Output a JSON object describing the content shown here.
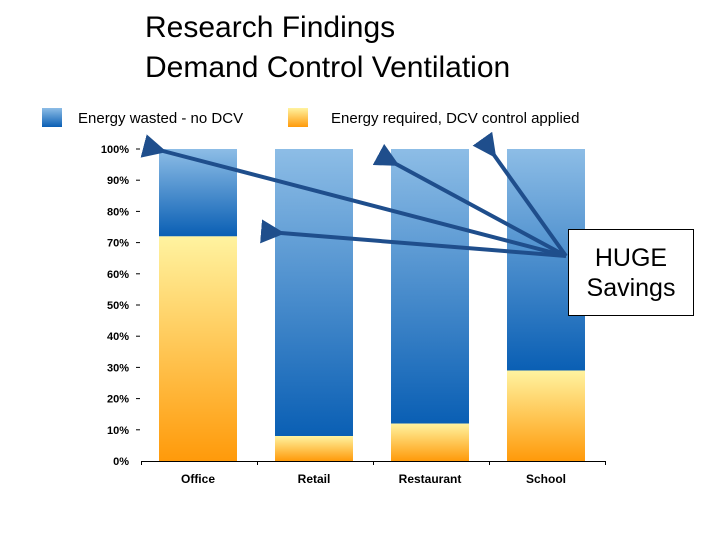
{
  "title": {
    "line1": "Research Findings",
    "line2": "Demand Control Ventilation"
  },
  "colors": {
    "wasted_top": "#8dbde6",
    "wasted_bottom": "#0a5fb4",
    "required_top": "#fff3a0",
    "required_bottom": "#ff9a0a",
    "arrow": "#1f4e8c"
  },
  "callout": {
    "line1": "HUGE",
    "line2": "Savings"
  },
  "chart_data": {
    "type": "bar",
    "stacked": true,
    "categories": [
      "Office",
      "Retail",
      "Restaurant",
      "School"
    ],
    "series": [
      {
        "name": "Energy required, DCV control applied",
        "values": [
          72,
          8,
          12,
          29
        ]
      },
      {
        "name": "Energy wasted - no DCV",
        "values": [
          28,
          92,
          88,
          71
        ]
      }
    ],
    "yticks": [
      "0%",
      "10%",
      "20%",
      "30%",
      "40%",
      "50%",
      "60%",
      "70%",
      "80%",
      "90%",
      "100%"
    ],
    "ylim": [
      0,
      100
    ],
    "legend": "top",
    "grid": false
  }
}
